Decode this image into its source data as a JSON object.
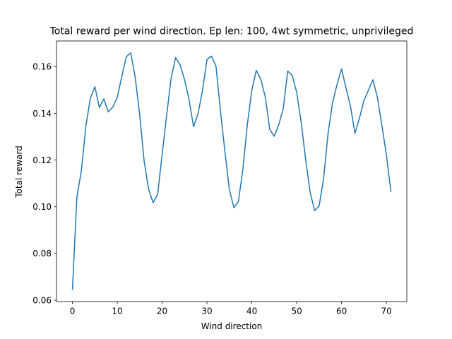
{
  "chart_data": {
    "type": "line",
    "title": "Total reward per wind direction. Ep len: 100, 4wt symmetric, unprivileged",
    "xlabel": "Wind direction",
    "ylabel": "Total reward",
    "xlim": [
      -3.55,
      74.55
    ],
    "ylim": [
      0.0594,
      0.171
    ],
    "xticks": [
      0,
      10,
      20,
      30,
      40,
      50,
      60,
      70
    ],
    "yticks": [
      0.06,
      0.08,
      0.1,
      0.12,
      0.14,
      0.16
    ],
    "ytick_labels": [
      "0.06",
      "0.08",
      "0.10",
      "0.12",
      "0.14",
      "0.16"
    ],
    "grid": false,
    "series": [
      {
        "color": "#1f77b4",
        "x": [
          0,
          1,
          2,
          3,
          4,
          5,
          6,
          7,
          8,
          9,
          10,
          11,
          12,
          13,
          14,
          15,
          16,
          17,
          18,
          19,
          20,
          21,
          22,
          23,
          24,
          25,
          26,
          27,
          28,
          29,
          30,
          31,
          32,
          33,
          34,
          35,
          36,
          37,
          38,
          39,
          40,
          41,
          42,
          43,
          44,
          45,
          46,
          47,
          48,
          49,
          50,
          51,
          52,
          53,
          54,
          55,
          56,
          57,
          58,
          59,
          60,
          61,
          62,
          63,
          64,
          65,
          66,
          67,
          68,
          69,
          70,
          71
        ],
        "values": [
          0.0646,
          0.1042,
          0.1155,
          0.1345,
          0.1465,
          0.1514,
          0.1425,
          0.1462,
          0.1406,
          0.1427,
          0.1468,
          0.1557,
          0.1642,
          0.1659,
          0.1554,
          0.1393,
          0.1193,
          0.1074,
          0.1017,
          0.1053,
          0.1224,
          0.139,
          0.1551,
          0.1638,
          0.1608,
          0.1544,
          0.1459,
          0.1343,
          0.1398,
          0.1498,
          0.1631,
          0.1645,
          0.1603,
          0.1411,
          0.1236,
          0.1073,
          0.0996,
          0.1022,
          0.116,
          0.1352,
          0.15,
          0.1584,
          0.1546,
          0.147,
          0.1331,
          0.1302,
          0.1351,
          0.142,
          0.1581,
          0.1562,
          0.149,
          0.1362,
          0.1202,
          0.1062,
          0.0984,
          0.1003,
          0.1121,
          0.1315,
          0.1446,
          0.1524,
          0.159,
          0.1508,
          0.143,
          0.1314,
          0.138,
          0.1455,
          0.1499,
          0.1544,
          0.1468,
          0.1348,
          0.1223,
          0.1065
        ]
      }
    ]
  }
}
